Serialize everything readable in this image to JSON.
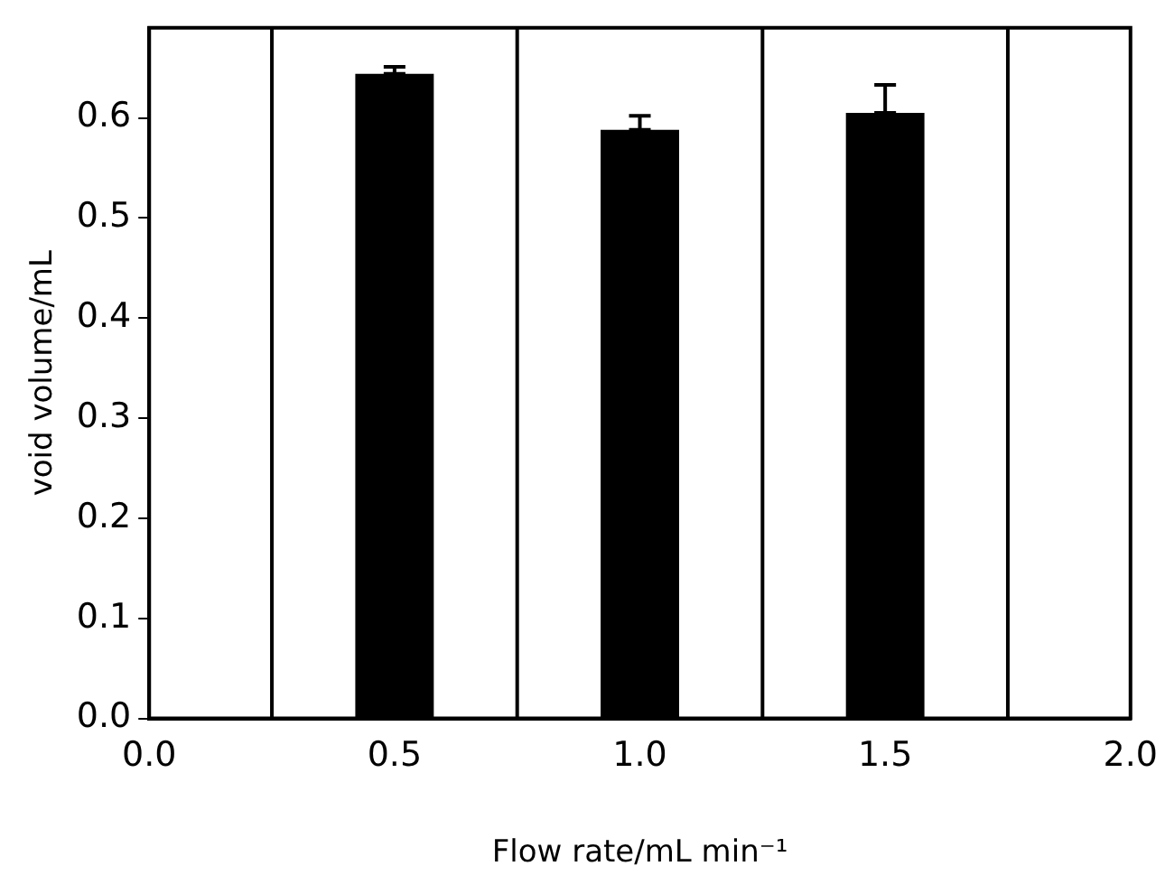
{
  "chart_data": {
    "type": "bar",
    "xlabel": "Flow rate/mL min⁻¹",
    "ylabel": "void volume/mL",
    "x": [
      0.5,
      1.0,
      1.5
    ],
    "values": [
      0.644,
      0.588,
      0.605
    ],
    "color": "#000000",
    "errors": [
      [
        0.644,
        0.651
      ],
      [
        0.588,
        0.602
      ],
      [
        0.605,
        0.633
      ]
    ],
    "xlim": [
      0,
      2
    ],
    "xticks": [
      {
        "value": 0,
        "label": "0.0"
      },
      {
        "value": 0.5,
        "label": "0.5"
      },
      {
        "value": 1,
        "label": "1.0"
      },
      {
        "value": 1.5,
        "label": "1.5"
      },
      {
        "value": 2,
        "label": "2.0"
      }
    ],
    "ylim": [
      0,
      0.69
    ],
    "yticks": [
      {
        "value": 0,
        "label": "0.0"
      },
      {
        "value": 0.1,
        "label": "0.1"
      },
      {
        "value": 0.2,
        "label": "0.2"
      },
      {
        "value": 0.3,
        "label": "0.3"
      },
      {
        "value": 0.4,
        "label": "0.4"
      },
      {
        "value": 0.5,
        "label": "0.5"
      },
      {
        "value": 0.6,
        "label": "0.6"
      }
    ],
    "ref_lines": [
      {
        "axis": "x",
        "value": 0.25,
        "color": "#000000"
      },
      {
        "axis": "x",
        "value": 0.75,
        "color": "#000000"
      },
      {
        "axis": "x",
        "value": 1.25,
        "color": "#000000"
      },
      {
        "axis": "x",
        "value": 1.75,
        "color": "#000000"
      }
    ],
    "grid": false,
    "legend": false
  }
}
